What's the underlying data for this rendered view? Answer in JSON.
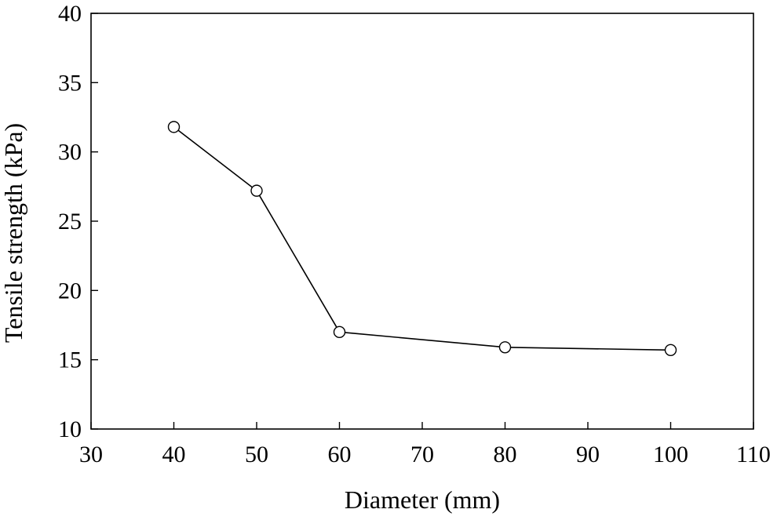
{
  "chart_data": {
    "type": "line",
    "title": "",
    "xlabel": "Diameter (mm)",
    "ylabel": "Tensile strength (kPa)",
    "xlim": [
      30,
      110
    ],
    "ylim": [
      10,
      40
    ],
    "xticks": [
      "30",
      "40",
      "50",
      "60",
      "70",
      "80",
      "90",
      "100",
      "110"
    ],
    "yticks": [
      "10",
      "15",
      "20",
      "25",
      "30",
      "35",
      "40"
    ],
    "grid": false,
    "legend": "none",
    "series": [
      {
        "x": [
          40,
          50,
          60,
          80,
          100
        ],
        "y": [
          31.8,
          27.2,
          17.0,
          15.9,
          15.7
        ],
        "marker": "open-circle",
        "line_color": "#000000"
      }
    ]
  }
}
